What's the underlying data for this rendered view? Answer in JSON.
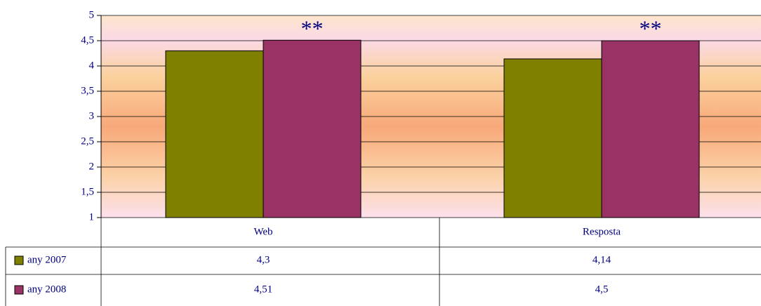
{
  "chart_data": {
    "type": "bar",
    "categories": [
      "Web",
      "Resposta"
    ],
    "series": [
      {
        "name": "any 2007",
        "color": "#808000",
        "values": [
          4.3,
          4.14
        ],
        "value_labels": [
          "4,3",
          "4,14"
        ]
      },
      {
        "name": "any 2008",
        "color": "#993366",
        "values": [
          4.51,
          4.5
        ],
        "value_labels": [
          "4,51",
          "4,5"
        ]
      }
    ],
    "annotations": [
      "**",
      "**"
    ],
    "ylim": [
      1,
      5
    ],
    "yticks": [
      1,
      {
        "value": 1.5,
        "label": "1,5"
      },
      2,
      {
        "value": 2.5,
        "label": "2,5"
      },
      3,
      {
        "value": 3.5,
        "label": "3,5"
      },
      4,
      {
        "value": 4.5,
        "label": "4,5"
      },
      5
    ],
    "grid": true
  }
}
